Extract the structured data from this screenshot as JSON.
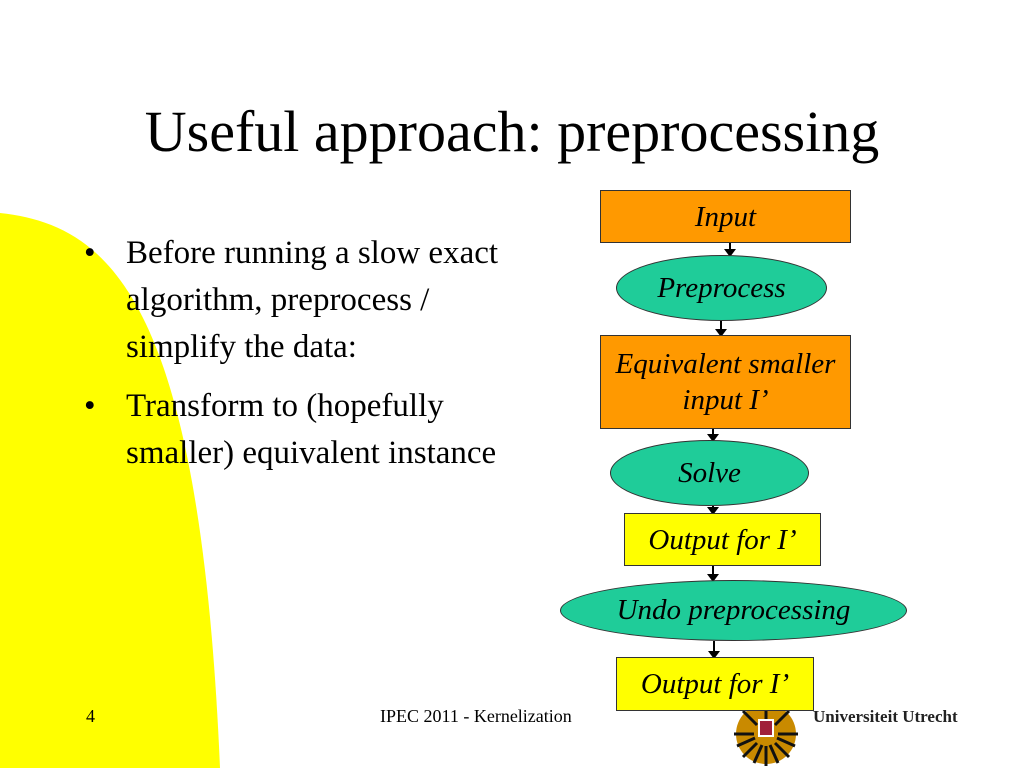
{
  "slide": {
    "title": "Useful approach: preprocessing",
    "bullets": [
      "Before running a slow exact algorithm, preprocess / simplify the data:",
      "Transform to (hopefully smaller) equivalent instance"
    ],
    "flowchart": [
      {
        "label": "Input",
        "shape": "rectangle",
        "color": "#FF9900"
      },
      {
        "label": "Preprocess",
        "shape": "ellipse",
        "color": "#1FCC99"
      },
      {
        "label": "Equivalent smaller input I’",
        "shape": "rectangle",
        "color": "#FF9900"
      },
      {
        "label": "Solve",
        "shape": "ellipse",
        "color": "#1FCC99"
      },
      {
        "label": "Output for I’",
        "shape": "rectangle",
        "color": "#FFFF00"
      },
      {
        "label": "Undo preprocessing",
        "shape": "ellipse",
        "color": "#1FCC99"
      },
      {
        "label": "Output for I’",
        "shape": "rectangle",
        "color": "#FFFF00"
      }
    ],
    "footer": {
      "page_number": "4",
      "center": "IPEC 2011 - Kernelization",
      "logo_text": "Universiteit Utrecht"
    },
    "accent_color": "#FFFF00"
  }
}
